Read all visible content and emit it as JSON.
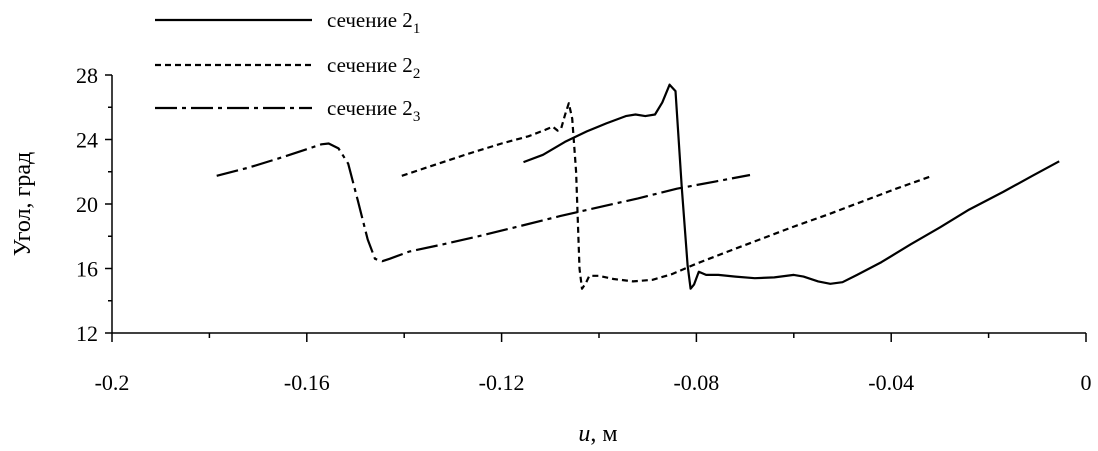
{
  "chart_data": {
    "type": "line",
    "xlabel": "u, м",
    "xlabel_main": "u",
    "xlabel_unit": ", м",
    "ylabel": "Угол, град",
    "xlim": [
      -0.2,
      0
    ],
    "ylim": [
      12,
      28
    ],
    "x_ticks": [
      -0.2,
      -0.16,
      -0.12,
      -0.08,
      -0.04,
      0
    ],
    "x_tick_labels": [
      "-0.2",
      "-0.16",
      "-0.12",
      "-0.08",
      "-0.04",
      "0"
    ],
    "y_ticks": [
      12,
      16,
      20,
      24,
      28
    ],
    "y_tick_labels": [
      "12",
      "16",
      "20",
      "24",
      "28"
    ],
    "grid": false,
    "legend_position": "top-left",
    "series": [
      {
        "name": "сечение 2",
        "subscript": "1",
        "style": "solid",
        "points": [
          [
            -0.1155,
            22.6
          ],
          [
            -0.1115,
            23.05
          ],
          [
            -0.107,
            23.85
          ],
          [
            -0.1025,
            24.5
          ],
          [
            -0.0985,
            25.0
          ],
          [
            -0.0945,
            25.45
          ],
          [
            -0.0925,
            25.55
          ],
          [
            -0.0905,
            25.45
          ],
          [
            -0.0885,
            25.55
          ],
          [
            -0.087,
            26.3
          ],
          [
            -0.0855,
            27.4
          ],
          [
            -0.0843,
            27.0
          ],
          [
            -0.083,
            21.0
          ],
          [
            -0.0818,
            16.2
          ],
          [
            -0.0812,
            14.75
          ],
          [
            -0.0805,
            15.0
          ],
          [
            -0.0795,
            15.8
          ],
          [
            -0.078,
            15.6
          ],
          [
            -0.0755,
            15.6
          ],
          [
            -0.072,
            15.5
          ],
          [
            -0.068,
            15.4
          ],
          [
            -0.064,
            15.45
          ],
          [
            -0.06,
            15.6
          ],
          [
            -0.058,
            15.5
          ],
          [
            -0.055,
            15.2
          ],
          [
            -0.0525,
            15.05
          ],
          [
            -0.05,
            15.15
          ],
          [
            -0.047,
            15.6
          ],
          [
            -0.042,
            16.4
          ],
          [
            -0.036,
            17.5
          ],
          [
            -0.03,
            18.55
          ],
          [
            -0.024,
            19.65
          ],
          [
            -0.017,
            20.75
          ],
          [
            -0.011,
            21.75
          ],
          [
            -0.0055,
            22.65
          ]
        ]
      },
      {
        "name": "сечение 2",
        "subscript": "2",
        "style": "dashed",
        "points": [
          [
            -0.1405,
            21.75
          ],
          [
            -0.134,
            22.4
          ],
          [
            -0.127,
            23.1
          ],
          [
            -0.12,
            23.75
          ],
          [
            -0.1145,
            24.2
          ],
          [
            -0.111,
            24.6
          ],
          [
            -0.1095,
            24.8
          ],
          [
            -0.1085,
            24.55
          ],
          [
            -0.1078,
            24.65
          ],
          [
            -0.107,
            25.5
          ],
          [
            -0.1062,
            26.25
          ],
          [
            -0.1055,
            25.3
          ],
          [
            -0.1047,
            22.0
          ],
          [
            -0.104,
            16.0
          ],
          [
            -0.1035,
            14.75
          ],
          [
            -0.1027,
            15.1
          ],
          [
            -0.102,
            15.55
          ],
          [
            -0.1,
            15.55
          ],
          [
            -0.097,
            15.35
          ],
          [
            -0.093,
            15.2
          ],
          [
            -0.089,
            15.3
          ],
          [
            -0.085,
            15.65
          ],
          [
            -0.08,
            16.3
          ],
          [
            -0.074,
            17.0
          ],
          [
            -0.067,
            17.8
          ],
          [
            -0.06,
            18.6
          ],
          [
            -0.053,
            19.35
          ],
          [
            -0.046,
            20.15
          ],
          [
            -0.039,
            20.95
          ],
          [
            -0.032,
            21.7
          ]
        ]
      },
      {
        "name": "сечение 2",
        "subscript": "3",
        "style": "dash-dot",
        "points": [
          [
            -0.1785,
            21.75
          ],
          [
            -0.172,
            22.25
          ],
          [
            -0.165,
            22.9
          ],
          [
            -0.1595,
            23.45
          ],
          [
            -0.157,
            23.7
          ],
          [
            -0.1555,
            23.75
          ],
          [
            -0.1535,
            23.45
          ],
          [
            -0.1515,
            22.5
          ],
          [
            -0.1495,
            20.2
          ],
          [
            -0.1475,
            17.8
          ],
          [
            -0.146,
            16.6
          ],
          [
            -0.1445,
            16.45
          ],
          [
            -0.143,
            16.6
          ],
          [
            -0.139,
            17.05
          ],
          [
            -0.132,
            17.5
          ],
          [
            -0.124,
            18.05
          ],
          [
            -0.116,
            18.65
          ],
          [
            -0.108,
            19.25
          ],
          [
            -0.1,
            19.8
          ],
          [
            -0.092,
            20.35
          ],
          [
            -0.084,
            20.95
          ],
          [
            -0.076,
            21.4
          ],
          [
            -0.069,
            21.8
          ]
        ]
      }
    ]
  }
}
